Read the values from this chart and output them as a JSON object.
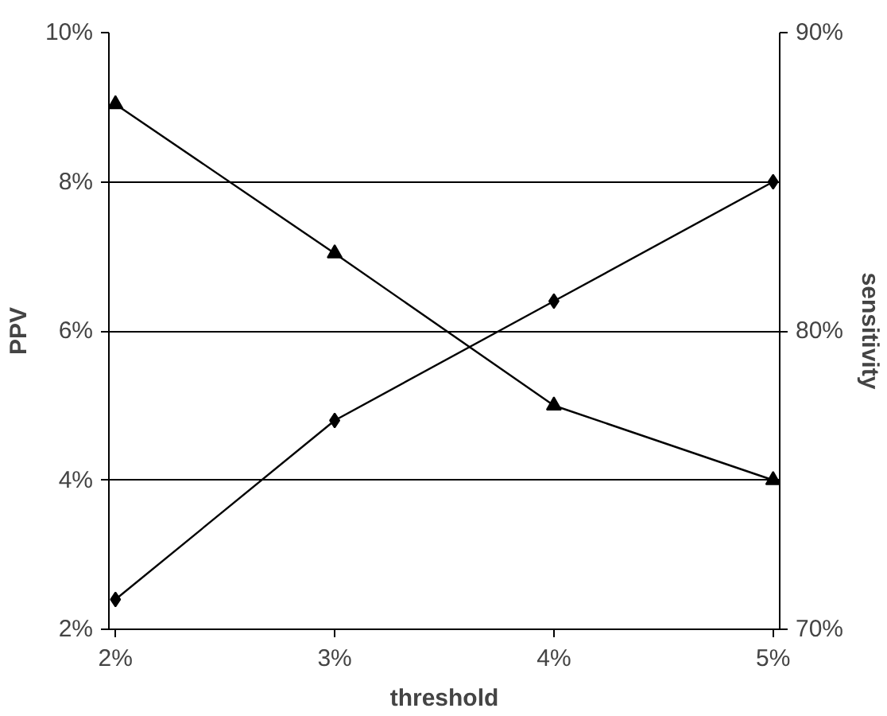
{
  "chart_data": {
    "type": "line",
    "xlabel": "threshold",
    "ylabel": "PPV",
    "y2label": "sensitivity",
    "categories": [
      "2%",
      "3%",
      "4%",
      "5%"
    ],
    "series": [
      {
        "color": "#000000",
        "marker": "diamond",
        "values": [
          2.4,
          4.8,
          6.4,
          8.0
        ]
      },
      {
        "color": "#000000",
        "marker": "triangle",
        "axis": "y2",
        "values": [
          87.6,
          82.6,
          77.5,
          75.0
        ]
      }
    ],
    "ylim": [
      2,
      10
    ],
    "yticks": [
      {
        "value": 2,
        "label": "2%"
      },
      {
        "value": 4,
        "label": "4%"
      },
      {
        "value": 6,
        "label": "6%"
      },
      {
        "value": 8,
        "label": "8%"
      },
      {
        "value": 10,
        "label": "10%"
      }
    ],
    "y2lim": [
      70,
      90
    ],
    "y2ticks": [
      {
        "value": 70,
        "label": "70%"
      },
      {
        "value": 80,
        "label": "80%"
      },
      {
        "value": 90,
        "label": "90%"
      }
    ],
    "grid": "y",
    "line_style": "solid"
  }
}
